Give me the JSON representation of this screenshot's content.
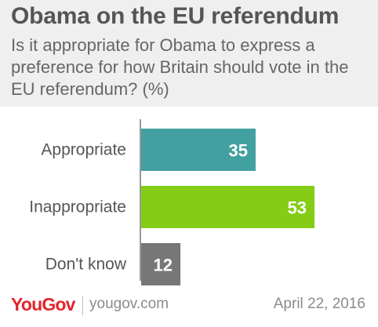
{
  "header": {
    "title": "Obama on the EU referendum",
    "subtitle": "Is it appropriate for Obama to express a preference for how Britain should vote in the EU referendum? (%)"
  },
  "chart_data": {
    "type": "bar",
    "orientation": "horizontal",
    "title": "Obama on the EU referendum",
    "subtitle": "Is it appropriate for Obama to express a preference for how Britain should vote in the EU referendum? (%)",
    "categories": [
      "Appropriate",
      "Inappropriate",
      "Don't know"
    ],
    "values": [
      35,
      53,
      12
    ],
    "colors": [
      "#42a0a1",
      "#84cc16",
      "#777777"
    ],
    "xlim": [
      0,
      60
    ],
    "grid": false,
    "legend": "none",
    "data_labels": true
  },
  "footer": {
    "brand": "YouGov",
    "brand_color": "#e3242b",
    "website": "yougov.com",
    "date": "April 22, 2016"
  }
}
